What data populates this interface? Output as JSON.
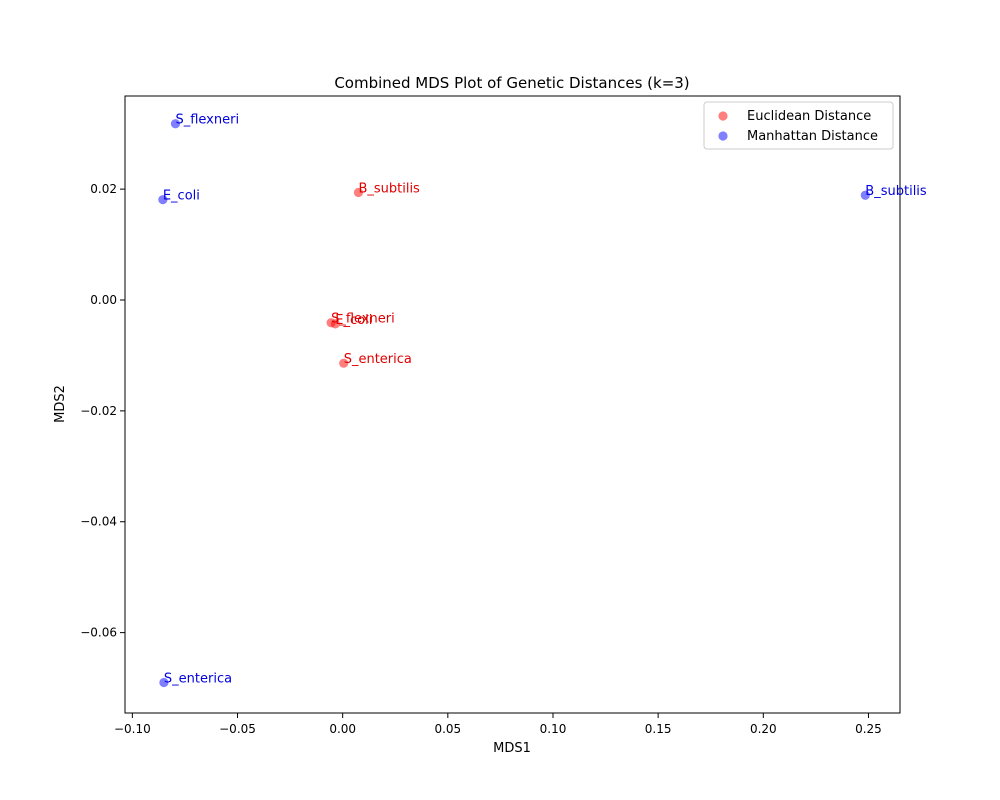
{
  "chart_data": {
    "type": "scatter",
    "title": "Combined MDS Plot of Genetic Distances (k=3)",
    "xlabel": "MDS1",
    "ylabel": "MDS2",
    "xlim": [
      -0.1035,
      0.265
    ],
    "ylim": [
      -0.0745,
      0.0368
    ],
    "x_ticks": [
      {
        "value": -0.1,
        "label": "−0.10"
      },
      {
        "value": -0.05,
        "label": "−0.05"
      },
      {
        "value": 0.0,
        "label": "0.00"
      },
      {
        "value": 0.05,
        "label": "0.05"
      },
      {
        "value": 0.1,
        "label": "0.10"
      },
      {
        "value": 0.15,
        "label": "0.15"
      },
      {
        "value": 0.2,
        "label": "0.20"
      },
      {
        "value": 0.25,
        "label": "0.25"
      }
    ],
    "y_ticks": [
      {
        "value": -0.06,
        "label": "−0.06"
      },
      {
        "value": -0.04,
        "label": "−0.04"
      },
      {
        "value": -0.02,
        "label": "−0.02"
      },
      {
        "value": 0.0,
        "label": "0.00"
      },
      {
        "value": 0.02,
        "label": "0.02"
      }
    ],
    "grid": false,
    "legend_position": "top-right",
    "series": [
      {
        "name": "Euclidean Distance",
        "color": "#ff0000",
        "label_color": "#e00000",
        "points": [
          {
            "label": "B_subtilis",
            "x": 0.0075,
            "y": 0.0194
          },
          {
            "label": "S_flexneri",
            "x": -0.0055,
            "y": -0.0041
          },
          {
            "label": "E_coli",
            "x": -0.0035,
            "y": -0.0043
          },
          {
            "label": "S_enterica",
            "x": 0.0005,
            "y": -0.0114
          }
        ]
      },
      {
        "name": "Manhattan Distance",
        "color": "#0000ff",
        "label_color": "#0000e0",
        "points": [
          {
            "label": "S_flexneri",
            "x": -0.0795,
            "y": 0.0318
          },
          {
            "label": "E_coli",
            "x": -0.0855,
            "y": 0.0181
          },
          {
            "label": "B_subtilis",
            "x": 0.2485,
            "y": 0.0189
          },
          {
            "label": "S_enterica",
            "x": -0.085,
            "y": -0.069
          }
        ]
      }
    ]
  }
}
